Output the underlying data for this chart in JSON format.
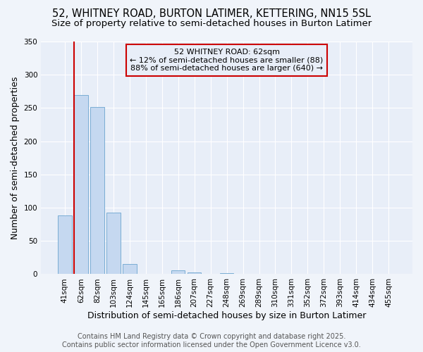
{
  "title": "52, WHITNEY ROAD, BURTON LATIMER, KETTERING, NN15 5SL",
  "subtitle": "Size of property relative to semi-detached houses in Burton Latimer",
  "xlabel": "Distribution of semi-detached houses by size in Burton Latimer",
  "ylabel": "Number of semi-detached properties",
  "bar_labels": [
    "41sqm",
    "62sqm",
    "82sqm",
    "103sqm",
    "124sqm",
    "145sqm",
    "165sqm",
    "186sqm",
    "207sqm",
    "227sqm",
    "248sqm",
    "269sqm",
    "289sqm",
    "310sqm",
    "331sqm",
    "352sqm",
    "372sqm",
    "393sqm",
    "414sqm",
    "434sqm",
    "455sqm"
  ],
  "bar_values": [
    88,
    270,
    252,
    93,
    15,
    0,
    0,
    6,
    3,
    0,
    2,
    0,
    0,
    0,
    0,
    0,
    0,
    0,
    0,
    0,
    0
  ],
  "bar_color": "#c5d8f0",
  "bar_edge_color": "#7aadd4",
  "highlight_color": "#cc0000",
  "ylim": [
    0,
    350
  ],
  "yticks": [
    0,
    50,
    100,
    150,
    200,
    250,
    300,
    350
  ],
  "annotation_title": "52 WHITNEY ROAD: 62sqm",
  "annotation_line1": "← 12% of semi-detached houses are smaller (88)",
  "annotation_line2": "88% of semi-detached houses are larger (640) →",
  "annotation_box_color": "#cc0000",
  "background_color": "#f0f4fa",
  "plot_bg_color": "#e8eef8",
  "grid_color": "#ffffff",
  "footer_line1": "Contains HM Land Registry data © Crown copyright and database right 2025.",
  "footer_line2": "Contains public sector information licensed under the Open Government Licence v3.0.",
  "title_fontsize": 10.5,
  "subtitle_fontsize": 9.5,
  "axis_label_fontsize": 9,
  "tick_fontsize": 7.5,
  "annotation_fontsize": 8,
  "footer_fontsize": 7
}
